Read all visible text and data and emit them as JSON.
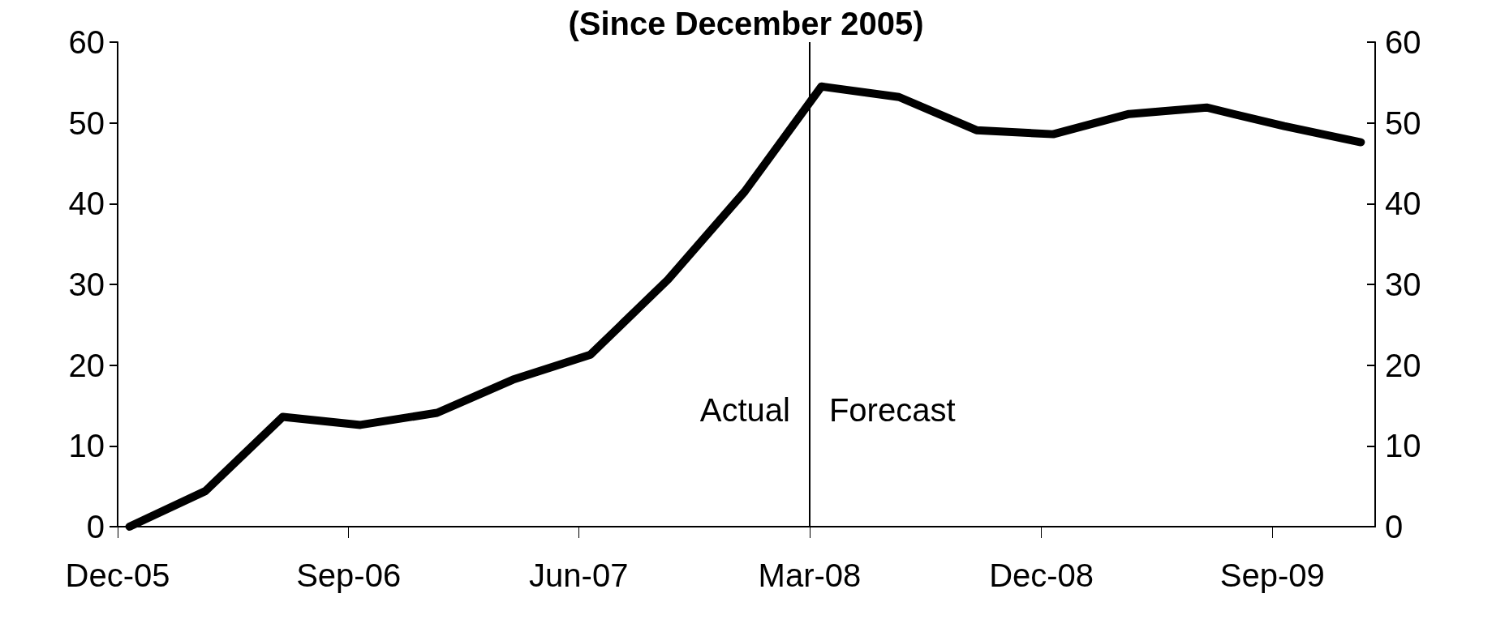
{
  "chart_data": {
    "type": "line",
    "title": "(Since December 2005)",
    "x": [
      "2005-12-15",
      "2006-03-15",
      "2006-06-15",
      "2006-09-15",
      "2006-12-15",
      "2007-03-15",
      "2007-06-15",
      "2007-09-15",
      "2007-12-15",
      "2008-03-15",
      "2008-06-15",
      "2008-09-15",
      "2008-12-15",
      "2009-03-15",
      "2009-06-15",
      "2009-09-15",
      "2009-12-15"
    ],
    "series": [
      {
        "color": "#000000",
        "values": [
          0,
          4.4,
          13.6,
          12.6,
          14.1,
          18.2,
          21.3,
          30.6,
          41.5,
          54.5,
          53.2,
          49.1,
          48.6,
          51.1,
          51.9,
          49.6,
          47.6
        ]
      }
    ],
    "xlim": [
      "2005-12-01",
      "2010-01-01"
    ],
    "xticks": [
      {
        "value": "2005-12-01",
        "label": "Dec-05"
      },
      {
        "value": "2006-09-01",
        "label": "Sep-06"
      },
      {
        "value": "2007-06-01",
        "label": "Jun-07"
      },
      {
        "value": "2008-03-01",
        "label": "Mar-08"
      },
      {
        "value": "2008-12-01",
        "label": "Dec-08"
      },
      {
        "value": "2009-09-01",
        "label": "Sep-09"
      }
    ],
    "ylim": [
      0,
      60
    ],
    "yticks": [
      0,
      10,
      20,
      30,
      40,
      50,
      60
    ],
    "y2lim": [
      0,
      60
    ],
    "y2ticks": [
      0,
      10,
      20,
      30,
      40,
      50,
      60
    ],
    "ref_lines": [
      {
        "axis": "x",
        "value": "2008-03-01",
        "color": "#000000"
      }
    ],
    "annotations": [
      "Actual",
      "Forecast"
    ],
    "grid": false,
    "line_style": "solid"
  }
}
